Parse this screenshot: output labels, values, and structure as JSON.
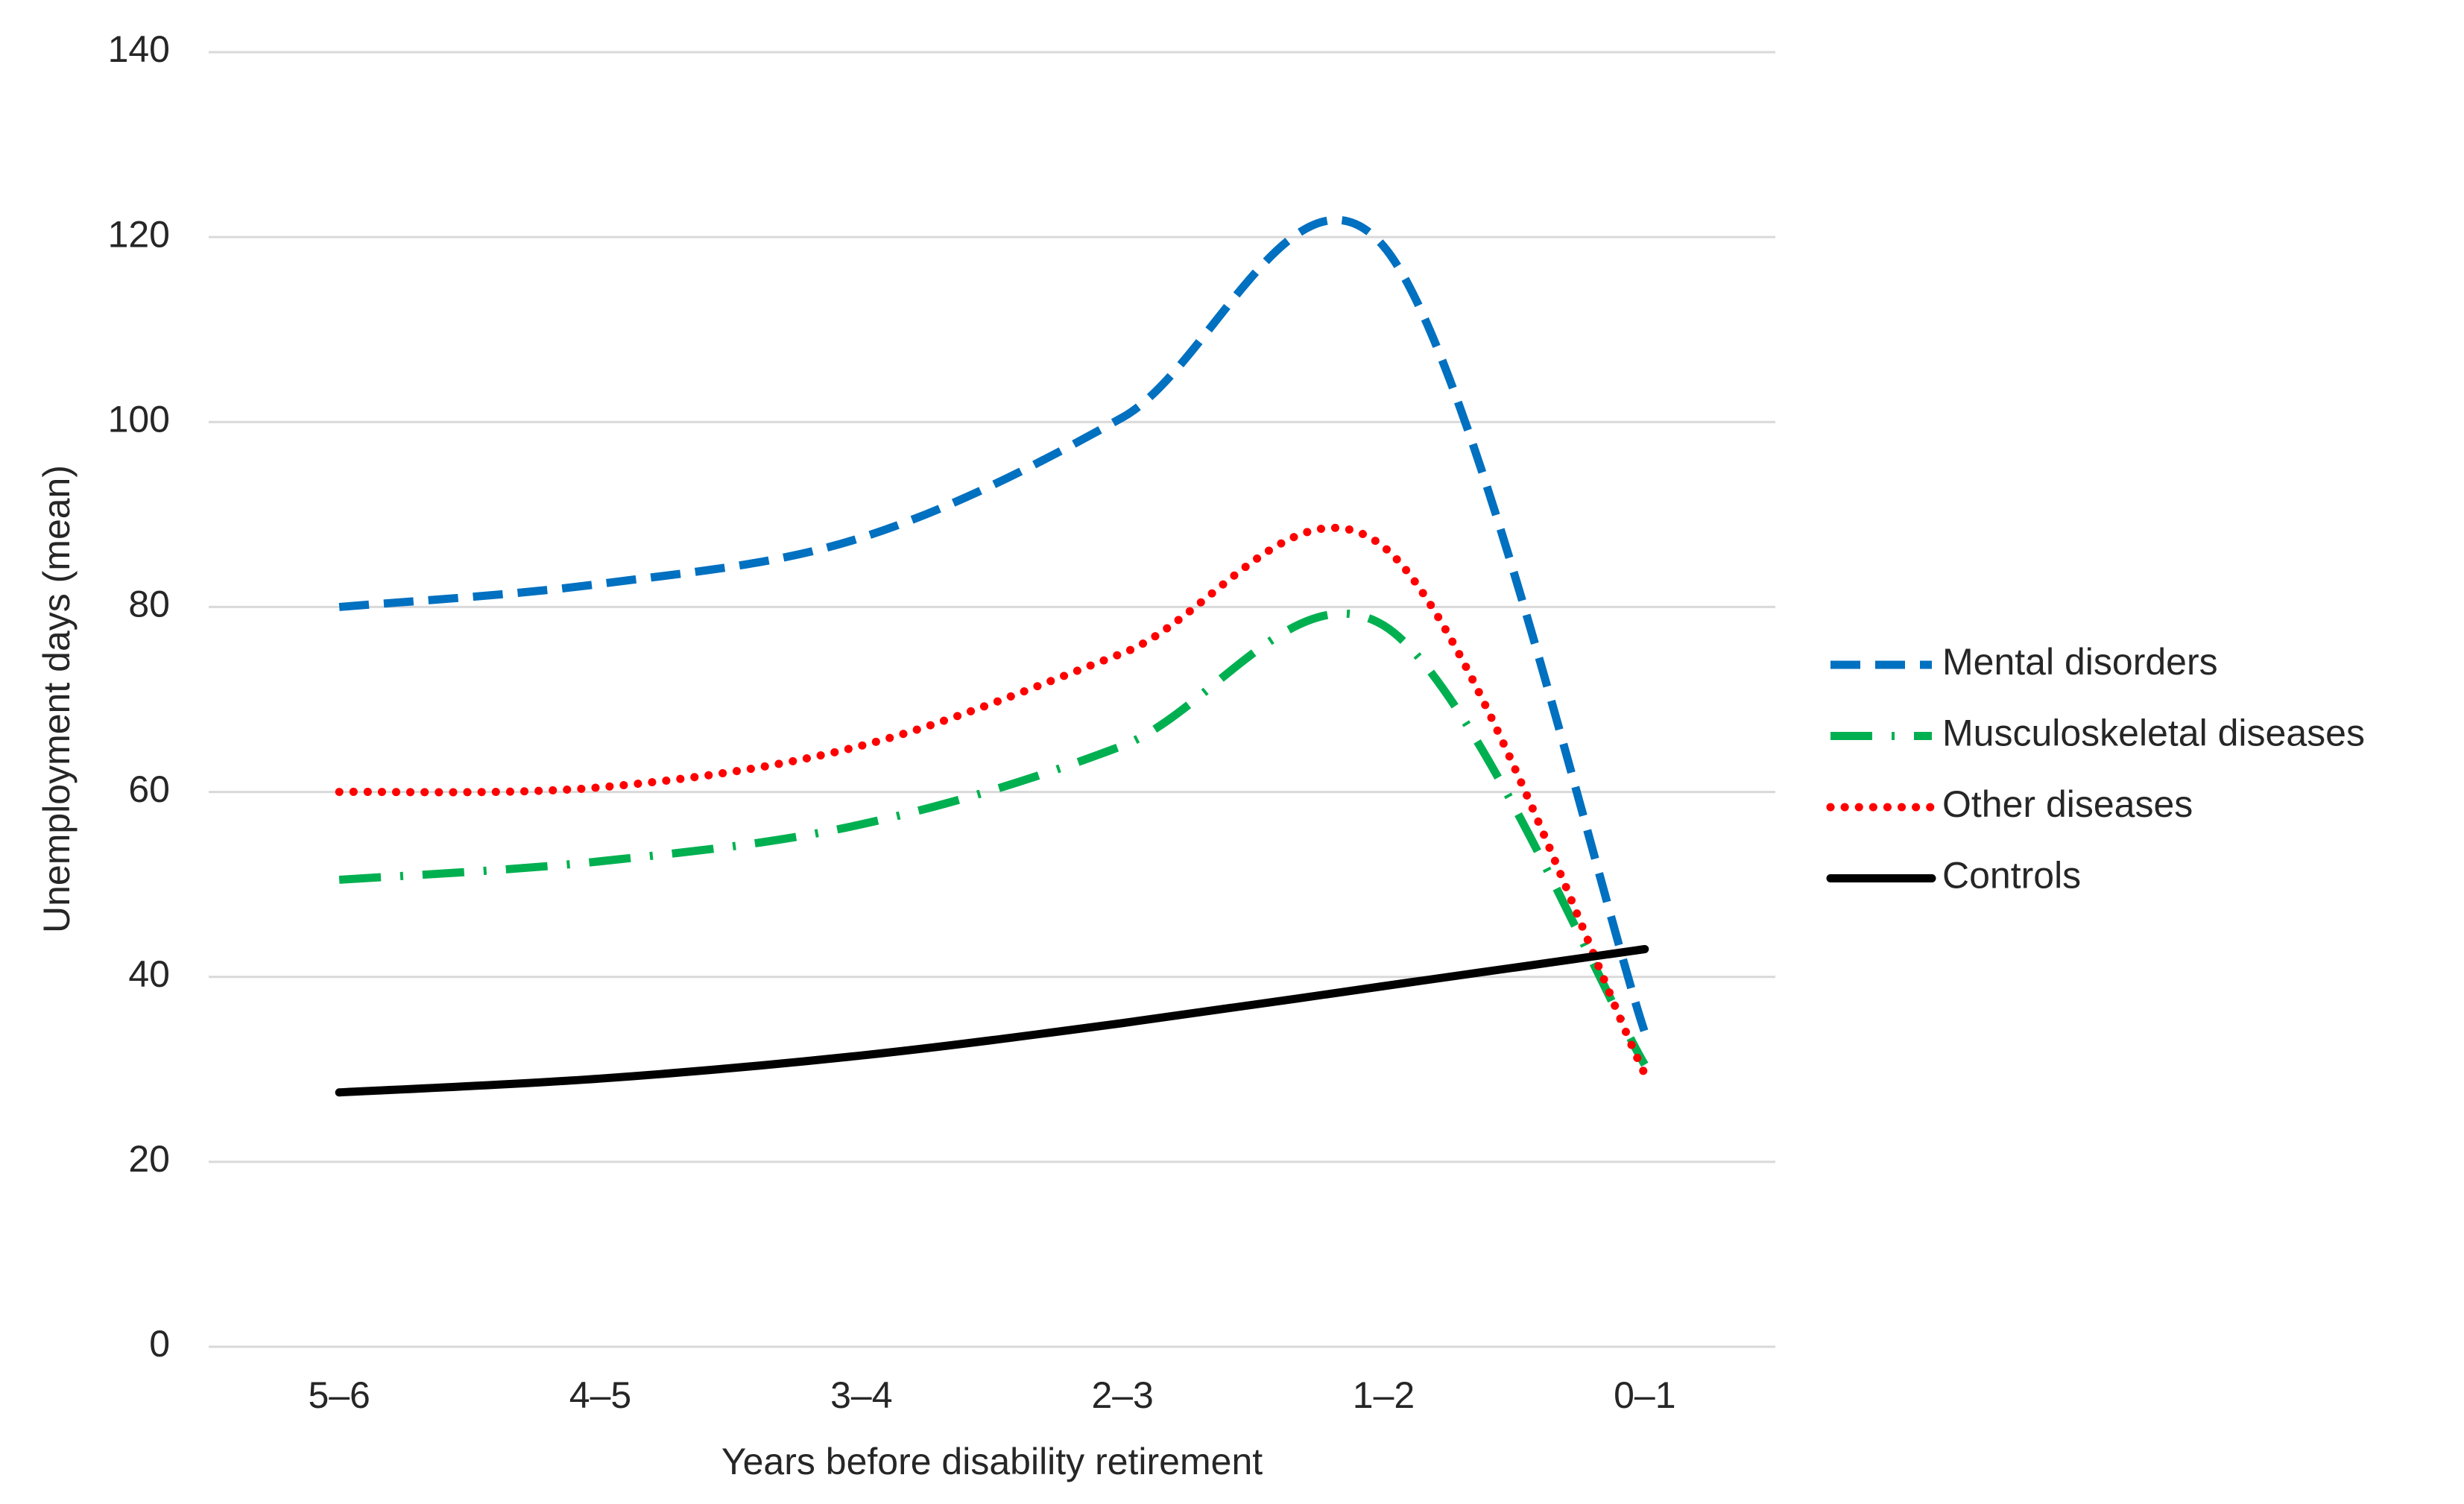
{
  "chart_data": {
    "type": "line",
    "x_label": "Years before disability retirement",
    "y_label": "Unemployment days (mean)",
    "categories": [
      "5–6",
      "4–5",
      "3–4",
      "2–3",
      "1–2",
      "0–1"
    ],
    "series": [
      {
        "name": "Mental disorders",
        "color": "#0070c0",
        "dash": "dashed",
        "values": [
          80,
          82.5,
          87.5,
          100.5,
          119,
          34
        ]
      },
      {
        "name": "Musculoskeletal diseases",
        "color": "#00b050",
        "dash": "dash-dot",
        "values": [
          50.5,
          52.5,
          56.5,
          65,
          78,
          30.5
        ]
      },
      {
        "name": "Other diseases",
        "color": "#ff0000",
        "dash": "dotted",
        "values": [
          60,
          60.5,
          65,
          75,
          86.5,
          29.5
        ]
      },
      {
        "name": "Controls",
        "color": "#000000",
        "dash": "solid",
        "values": [
          27.5,
          29,
          31.5,
          35,
          39,
          43
        ]
      }
    ],
    "ylim": [
      0,
      140
    ],
    "yticks": [
      0,
      20,
      40,
      60,
      80,
      100,
      120,
      140
    ],
    "grid": true,
    "smooth": true,
    "legend": "right"
  }
}
